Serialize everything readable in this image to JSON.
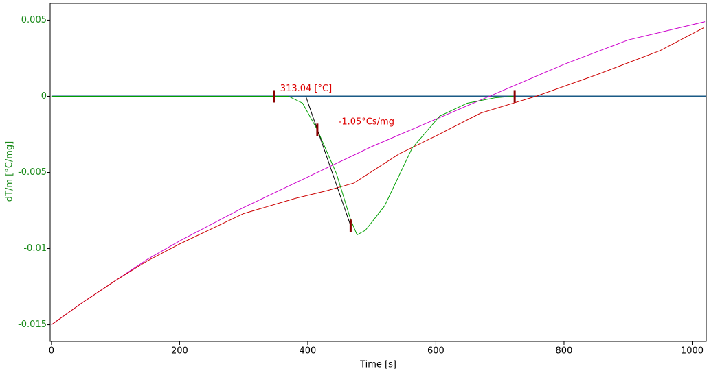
{
  "chart_data": {
    "type": "line",
    "xlabel": "Time [s]",
    "ylabel": "dT/m  [°C/mg]",
    "xlim": [
      -2,
      1022
    ],
    "ylim": [
      -0.0161,
      0.0061
    ],
    "xticks": [
      0,
      200,
      400,
      600,
      800,
      1000
    ],
    "yticks": [
      0.005,
      0,
      -0.005,
      -0.01,
      -0.015
    ],
    "series": [
      {
        "name": "baseline",
        "color": "#1a5a86",
        "x": [
          0,
          1022
        ],
        "values": [
          0,
          0
        ]
      },
      {
        "name": "magenta",
        "color": "#cc00cc",
        "x": [
          0,
          50,
          100,
          150,
          200,
          300,
          400,
          500,
          600,
          700,
          800,
          900,
          1020
        ],
        "values": [
          -0.015,
          -0.0135,
          -0.0121,
          -0.0107,
          -0.0095,
          -0.0073,
          -0.0053,
          -0.0033,
          -0.0015,
          0.0003,
          0.0021,
          0.0037,
          0.0049
        ]
      },
      {
        "name": "red",
        "color": "#cc0000",
        "x": [
          0,
          50,
          100,
          150,
          200,
          300,
          381,
          430,
          472,
          542,
          600,
          670,
          756,
          850,
          950,
          1018
        ],
        "values": [
          -0.015,
          -0.0135,
          -0.0121,
          -0.0108,
          -0.0097,
          -0.0077,
          -0.0067,
          -0.0062,
          -0.0057,
          -0.0038,
          -0.0026,
          -0.0011,
          0,
          0.0014,
          0.003,
          0.0045
        ]
      },
      {
        "name": "green",
        "color": "#00a000",
        "x": [
          0,
          370,
          392,
          415,
          445,
          467,
          477,
          490,
          520,
          563,
          606,
          649,
          692,
          720
        ],
        "values": [
          0,
          0,
          -0.00045,
          -0.0022,
          -0.0051,
          -0.0081,
          -0.0091,
          -0.0088,
          -0.0072,
          -0.0034,
          -0.0013,
          -0.00045,
          -0.0001,
          0
        ]
      },
      {
        "name": "tangent",
        "color": "#000000",
        "x": [
          397,
          467
        ],
        "values": [
          0,
          -0.0085
        ]
      }
    ],
    "markers": {
      "color": "#8b0000",
      "x": [
        348,
        415,
        467,
        723
      ],
      "values": [
        0,
        -0.0022,
        -0.0085,
        0
      ]
    },
    "annotations": [
      {
        "text": "313.04 [°C]",
        "x": 357,
        "y": 0.0005
      },
      {
        "text": "-1.05°Cs/mg",
        "x": 448,
        "y": -0.0017
      }
    ]
  }
}
